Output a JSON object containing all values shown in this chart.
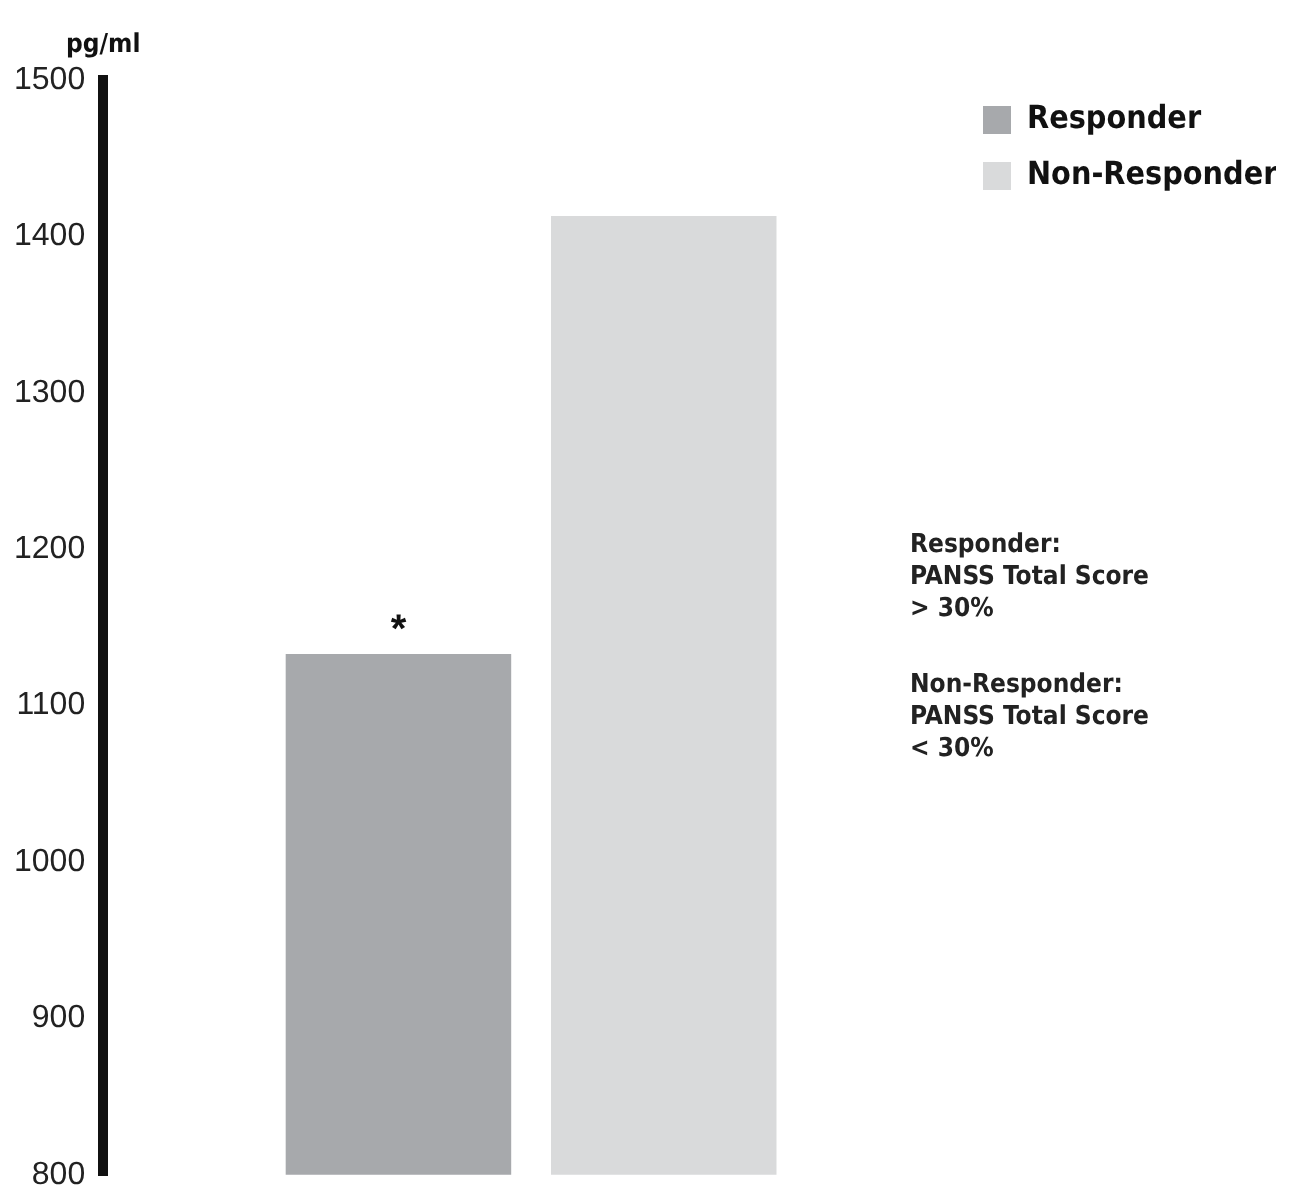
{
  "chart_data": {
    "type": "bar",
    "ylabel": "pg/ml",
    "categories": [
      null
    ],
    "series": [
      {
        "name": "Responder",
        "color": "#a7a9ac",
        "values": [
          1133
        ]
      },
      {
        "name": "Non-Responder",
        "color": "#d9dadb",
        "values": [
          1413
        ]
      }
    ],
    "ylim": [
      800,
      1500
    ],
    "yticks": [
      800,
      900,
      1000,
      1100,
      1200,
      1300,
      1400,
      1500
    ],
    "grid": false,
    "legend": "top right",
    "annotations": [
      {
        "text": "*",
        "y": 1133
      },
      "Responder:\nPANSS Total Score\n> 30%",
      "Non-Responder:\nPANSS Total Score\n< 30%"
    ]
  }
}
